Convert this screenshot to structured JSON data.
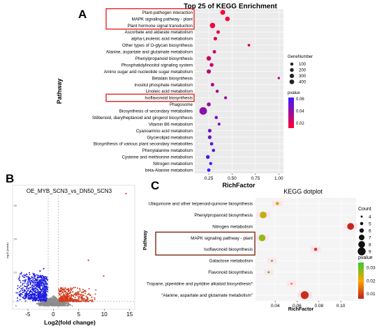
{
  "panel_labels": {
    "a": "A",
    "b": "B",
    "c": "C"
  },
  "chart_data": [
    {
      "type": "scatter",
      "panel": "A",
      "title": "Top 25 of KEGG Enrichment",
      "xlabel": "RichFactor",
      "ylabel": "Pathway",
      "xlim": [
        0.1,
        1.05
      ],
      "xticks": [
        0.25,
        0.5,
        0.75,
        1.0
      ],
      "xtick_labels": [
        "0.25",
        "0.50",
        "0.75",
        "1.00"
      ],
      "grid": true,
      "legend_size": {
        "title": "GeneNumber",
        "values": [
          100,
          200,
          300,
          400
        ],
        "labels": [
          "100",
          "200",
          "300",
          "400"
        ]
      },
      "legend_color": {
        "title": "pvalue",
        "ticks": [
          0.06,
          0.04,
          0.02
        ],
        "labels": [
          "0.06",
          "0.04",
          "0.02"
        ],
        "low_color": "#ff0033",
        "high_color": "#3b1cff"
      },
      "highlighted": [
        "Plant-pathogen interaction",
        "MAPK signaling pathway - plant",
        "Plant hormone signal transduction",
        "Isoflavonoid biosynthesis"
      ],
      "points": [
        {
          "pathway": "Plant-pathogen interaction",
          "rich": 0.4,
          "genes": 130,
          "pvalue": 0.005
        },
        {
          "pathway": "MAPK signaling pathway - plant",
          "rich": 0.45,
          "genes": 110,
          "pvalue": 0.006
        },
        {
          "pathway": "Plant hormone signal transduction",
          "rich": 0.29,
          "genes": 170,
          "pvalue": 0.008
        },
        {
          "pathway": "Ascorbate and aldarate metabolism",
          "rich": 0.35,
          "genes": 45,
          "pvalue": 0.012
        },
        {
          "pathway": "alpha-Linolenic acid metabolism",
          "rich": 0.32,
          "genes": 50,
          "pvalue": 0.014
        },
        {
          "pathway": "Other types of O-glycan biosynthesis",
          "rich": 0.68,
          "genes": 15,
          "pvalue": 0.016
        },
        {
          "pathway": "Alanine, aspartate and glutamate metabolism",
          "rich": 0.31,
          "genes": 45,
          "pvalue": 0.018
        },
        {
          "pathway": "Phenylpropanoid biosynthesis",
          "rich": 0.25,
          "genes": 110,
          "pvalue": 0.02
        },
        {
          "pathway": "Phosphatidylinositol signaling system",
          "rich": 0.28,
          "genes": 60,
          "pvalue": 0.022
        },
        {
          "pathway": "Amino sugar and nucleotide sugar metabolism",
          "rich": 0.25,
          "genes": 90,
          "pvalue": 0.024
        },
        {
          "pathway": "Betalain biosynthesis",
          "rich": 1.0,
          "genes": 8,
          "pvalue": 0.026
        },
        {
          "pathway": "Inositol phosphate metabolism",
          "rich": 0.29,
          "genes": 50,
          "pvalue": 0.028
        },
        {
          "pathway": "Linoleic acid metabolism",
          "rich": 0.34,
          "genes": 30,
          "pvalue": 0.03
        },
        {
          "pathway": "Isoflavonoid biosynthesis",
          "rich": 0.43,
          "genes": 25,
          "pvalue": 0.033
        },
        {
          "pathway": "Phagosome",
          "rich": 0.25,
          "genes": 70,
          "pvalue": 0.036
        },
        {
          "pathway": "Biosynthesis of secondary metabolites",
          "rich": 0.19,
          "genes": 420,
          "pvalue": 0.038
        },
        {
          "pathway": "Stilbenoid, diarylheptanoid and gingerol biosynthesis",
          "rich": 0.33,
          "genes": 35,
          "pvalue": 0.041
        },
        {
          "pathway": "Vitamin B6 metabolism",
          "rich": 0.36,
          "genes": 20,
          "pvalue": 0.043
        },
        {
          "pathway": "Cyanoamino acid metabolism",
          "rich": 0.26,
          "genes": 50,
          "pvalue": 0.046
        },
        {
          "pathway": "Glycerolipid metabolism",
          "rich": 0.26,
          "genes": 55,
          "pvalue": 0.048
        },
        {
          "pathway": "Biosynthesis of various plant secondary metabolites",
          "rich": 0.28,
          "genes": 40,
          "pvalue": 0.05
        },
        {
          "pathway": "Phenylalanine metabolism",
          "rich": 0.3,
          "genes": 35,
          "pvalue": 0.052
        },
        {
          "pathway": "Cysteine and methionine metabolism",
          "rich": 0.24,
          "genes": 60,
          "pvalue": 0.055
        },
        {
          "pathway": "Nitrogen metabolism",
          "rich": 0.27,
          "genes": 30,
          "pvalue": 0.058
        },
        {
          "pathway": "beta-Alanine metabolism",
          "rich": 0.25,
          "genes": 40,
          "pvalue": 0.06
        }
      ]
    },
    {
      "type": "scatter",
      "panel": "B",
      "title": "OE_MYB_SCN3_vs_DN50_SCN3",
      "xlabel": "Log2(fold change)",
      "ylabel": "-log10 (pvalue)",
      "xlim": [
        -8,
        16
      ],
      "xticks": [
        -5,
        0,
        5,
        10,
        15
      ],
      "xtick_labels": [
        "-5",
        "0",
        "5",
        "10",
        "15"
      ],
      "yticks": [
        0,
        10,
        20,
        30
      ],
      "ytick_labels": [
        "0",
        "10",
        "20",
        "30"
      ],
      "ylim": [
        -1,
        36
      ],
      "series": [
        {
          "key": "down",
          "color": "#1f1fe0"
        },
        {
          "key": "ns",
          "color": "#8c8c8c"
        },
        {
          "key": "up",
          "color": "#d43a1a"
        }
      ],
      "outliers": [
        {
          "x": 14.3,
          "y": 33.5
        },
        {
          "x": 6.9,
          "y": 13.6
        },
        {
          "x": 9.9,
          "y": 8.9
        },
        {
          "x": 5.9,
          "y": 4.2
        },
        {
          "x": 6.2,
          "y": 4.6
        },
        {
          "x": -1.9,
          "y": 11.1
        },
        {
          "x": -2.6,
          "y": 10.4
        }
      ],
      "cutoff_x": [
        -1,
        1
      ],
      "cutoff_y": 1.3
    },
    {
      "type": "scatter",
      "panel": "C",
      "title": "KEGG dotplot",
      "xlabel": "RichFactor",
      "ylabel": "Pathway",
      "xlim": [
        0.022,
        0.114
      ],
      "xticks": [
        0.04,
        0.06,
        0.08,
        0.1
      ],
      "xtick_labels": [
        "0.04",
        "0.06",
        "0.08",
        "0.10"
      ],
      "grid": true,
      "legend_size": {
        "title": "Count",
        "values": [
          4,
          5,
          6,
          7,
          8,
          9
        ],
        "labels": [
          "4",
          "5",
          "6",
          "7",
          "8",
          "9"
        ]
      },
      "legend_color": {
        "title": "pvalue",
        "ticks": [
          0.03,
          0.02,
          0.01
        ],
        "labels": [
          "0.03",
          "0.02",
          "0.01"
        ],
        "low_color": "#c01e1e",
        "mid_color": "#ffa500",
        "high_color": "#2ecc2e"
      },
      "highlighted": [
        "MAPK signaling pathway - plant",
        "Isoflavonoid biosynthesis"
      ],
      "points": [
        {
          "pathway": "Ubiquinone and other terpenoid-quinone biosynthesis",
          "rich": 0.042,
          "count": 5,
          "pvalue": 0.023
        },
        {
          "pathway": "Phenylpropanoid biosynthesis",
          "rich": 0.029,
          "count": 8,
          "pvalue": 0.025
        },
        {
          "pathway": "Nitrogen metabolism",
          "rich": 0.109,
          "count": 8,
          "pvalue": 0.005
        },
        {
          "pathway": "MAPK signaling pathway - plant",
          "rich": 0.028,
          "count": 8,
          "pvalue": 0.028
        },
        {
          "pathway": "Isoflavonoid biosynthesis",
          "rich": 0.077,
          "count": 5,
          "pvalue": 0.008
        },
        {
          "pathway": "Galactose metabolism",
          "rich": 0.037,
          "count": 4,
          "pvalue": 0.031
        },
        {
          "pathway": "Flavonoid biosynthesis",
          "rich": 0.034,
          "count": 4,
          "pvalue": 0.035
        },
        {
          "pathway": "Tropane, piperidine and pyridine alkaloid biosynthesis*",
          "rich": 0.055,
          "count": 4,
          "pvalue": 0.018
        },
        {
          "pathway": "\"Alanine, aspartate and glutamate metabolism\"",
          "rich": 0.067,
          "count": 9,
          "pvalue": 0.006
        }
      ]
    }
  ]
}
